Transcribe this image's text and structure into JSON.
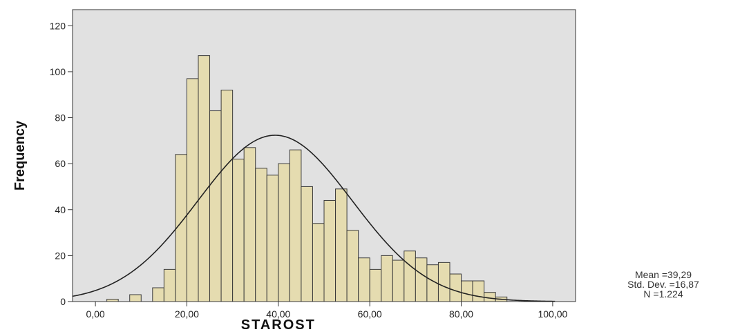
{
  "chart_data": {
    "type": "bar",
    "subtype": "histogram",
    "xlabel": "STAROST",
    "ylabel": "Frequency",
    "xlim": [
      -5,
      105
    ],
    "ylim": [
      0,
      127
    ],
    "x_ticks": [
      0,
      20,
      40,
      60,
      80,
      100
    ],
    "x_tick_labels": [
      "0,00",
      "20,00",
      "40,00",
      "60,00",
      "80,00",
      "100,00"
    ],
    "y_ticks": [
      0,
      20,
      40,
      60,
      80,
      100,
      120
    ],
    "y_tick_labels": [
      "0",
      "20",
      "40",
      "60",
      "80",
      "100",
      "120"
    ],
    "bin_width": 2.5,
    "bins_start": [
      2.5,
      7.5,
      12.5,
      15,
      17.5,
      20,
      22.5,
      25,
      27.5,
      30,
      32.5,
      35,
      37.5,
      40,
      42.5,
      45,
      47.5,
      50,
      52.5,
      55,
      57.5,
      60,
      62.5,
      65,
      67.5,
      70,
      72.5,
      75,
      77.5,
      80,
      82.5,
      85,
      87.5
    ],
    "values": [
      1,
      3,
      6,
      14,
      64,
      97,
      107,
      83,
      92,
      62,
      67,
      58,
      55,
      60,
      66,
      50,
      34,
      44,
      49,
      31,
      19,
      14,
      20,
      18,
      22,
      19,
      16,
      17,
      12,
      9,
      9,
      4,
      2
    ],
    "normal_curve": {
      "mean": 39.29,
      "std": 16.87,
      "n": 1224
    },
    "colors": {
      "bar_fill": "#e5dcb0",
      "bar_stroke": "#3a3a3a",
      "plot_bg": "#e1e1e1",
      "curve": "#222222"
    },
    "grid": false,
    "legend": "none"
  },
  "stats": {
    "mean": "Mean =39,29",
    "std": "Std. Dev. =16,87",
    "n": "N =1.224"
  }
}
